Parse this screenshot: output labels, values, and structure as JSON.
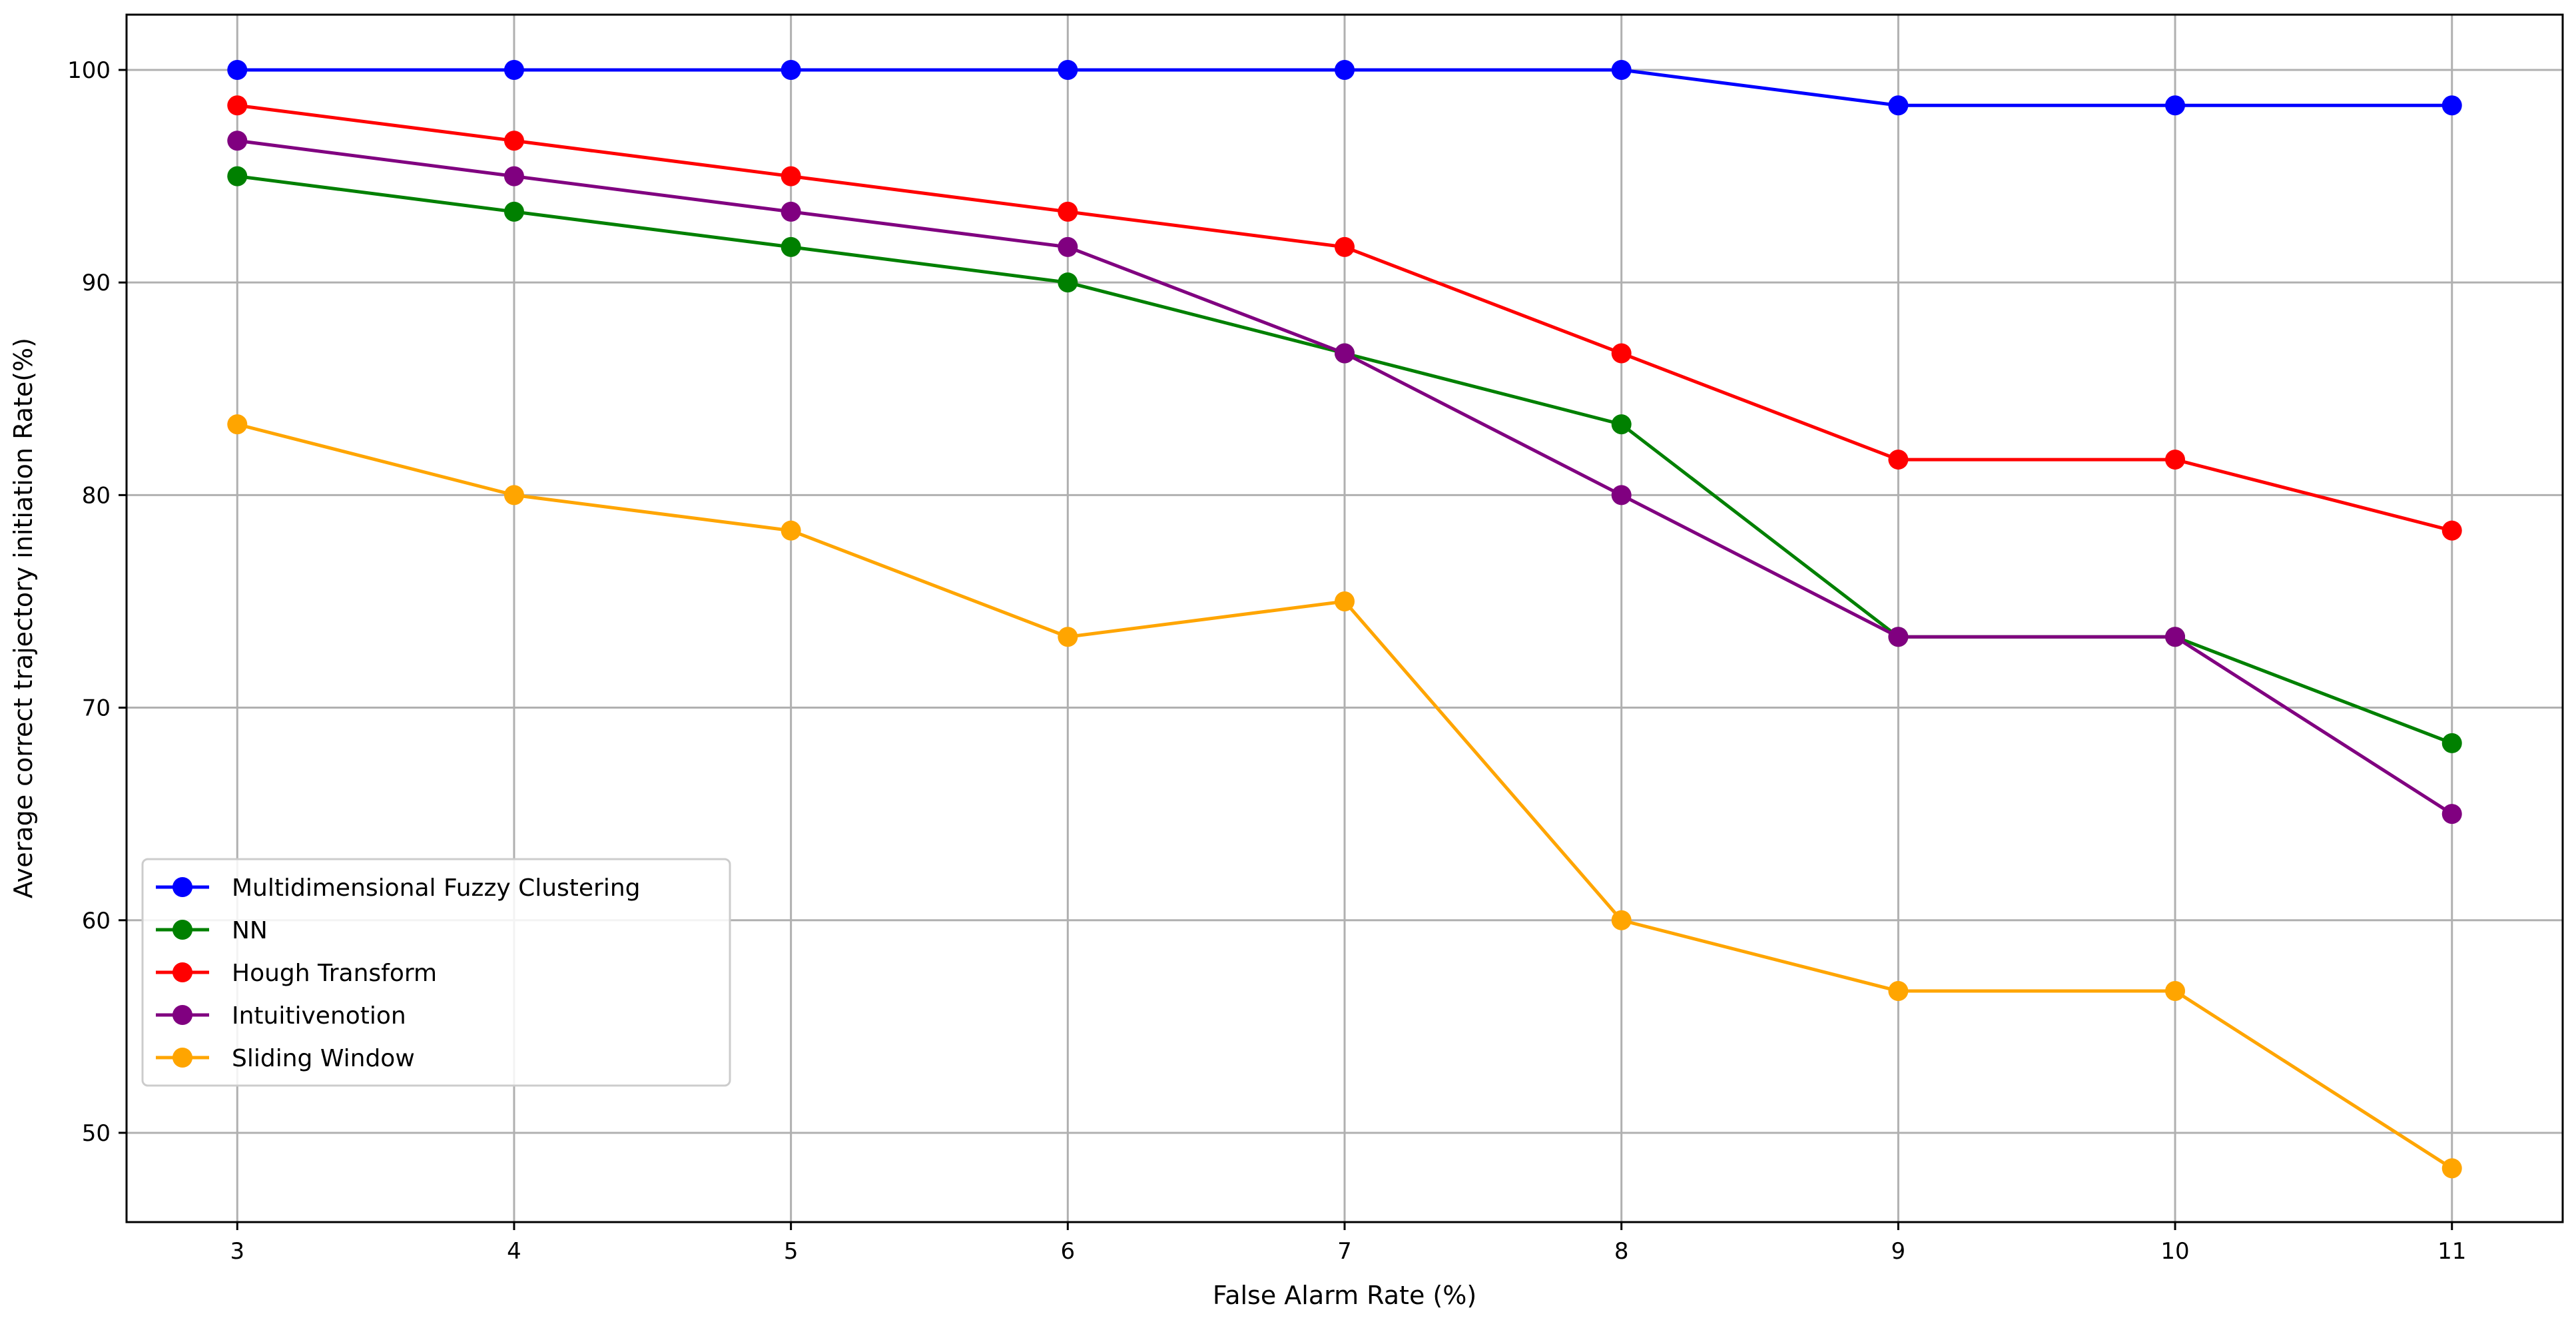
{
  "chart_data": {
    "type": "line",
    "title": "",
    "xlabel": "False Alarm Rate (%)",
    "ylabel": "Average correct trajectory initiation Rate(%)",
    "x": [
      3,
      4,
      5,
      6,
      7,
      8,
      9,
      10,
      11
    ],
    "xlim": [
      2.6,
      11.4
    ],
    "ylim": [
      45.8,
      102.6
    ],
    "xticks": [
      "3",
      "4",
      "5",
      "6",
      "7",
      "8",
      "9",
      "10",
      "11"
    ],
    "yticks": [
      "50",
      "60",
      "70",
      "80",
      "90",
      "100"
    ],
    "ytick_values": [
      50,
      60,
      70,
      80,
      90,
      100
    ],
    "grid": true,
    "legend_position": "center-left",
    "series": [
      {
        "name": "Multidimensional Fuzzy Clustering",
        "color": "#0000ff",
        "values": [
          100,
          100,
          100,
          100,
          100,
          100,
          98.33,
          98.33,
          98.33
        ]
      },
      {
        "name": "NN",
        "color": "#008000",
        "values": [
          95,
          93.33,
          91.67,
          90,
          86.67,
          83.33,
          73.33,
          73.33,
          68.33
        ]
      },
      {
        "name": "Hough Transform",
        "color": "#ff0000",
        "values": [
          98.33,
          96.67,
          95,
          93.33,
          91.67,
          86.67,
          81.67,
          81.67,
          78.33
        ]
      },
      {
        "name": "Intuitivenotion",
        "color": "#800080",
        "values": [
          96.67,
          95,
          93.33,
          91.67,
          86.67,
          80,
          73.33,
          73.33,
          65
        ]
      },
      {
        "name": "Sliding Window",
        "color": "#ffa500",
        "values": [
          83.33,
          80,
          78.33,
          73.33,
          75,
          60,
          56.67,
          56.67,
          48.33
        ]
      }
    ]
  }
}
